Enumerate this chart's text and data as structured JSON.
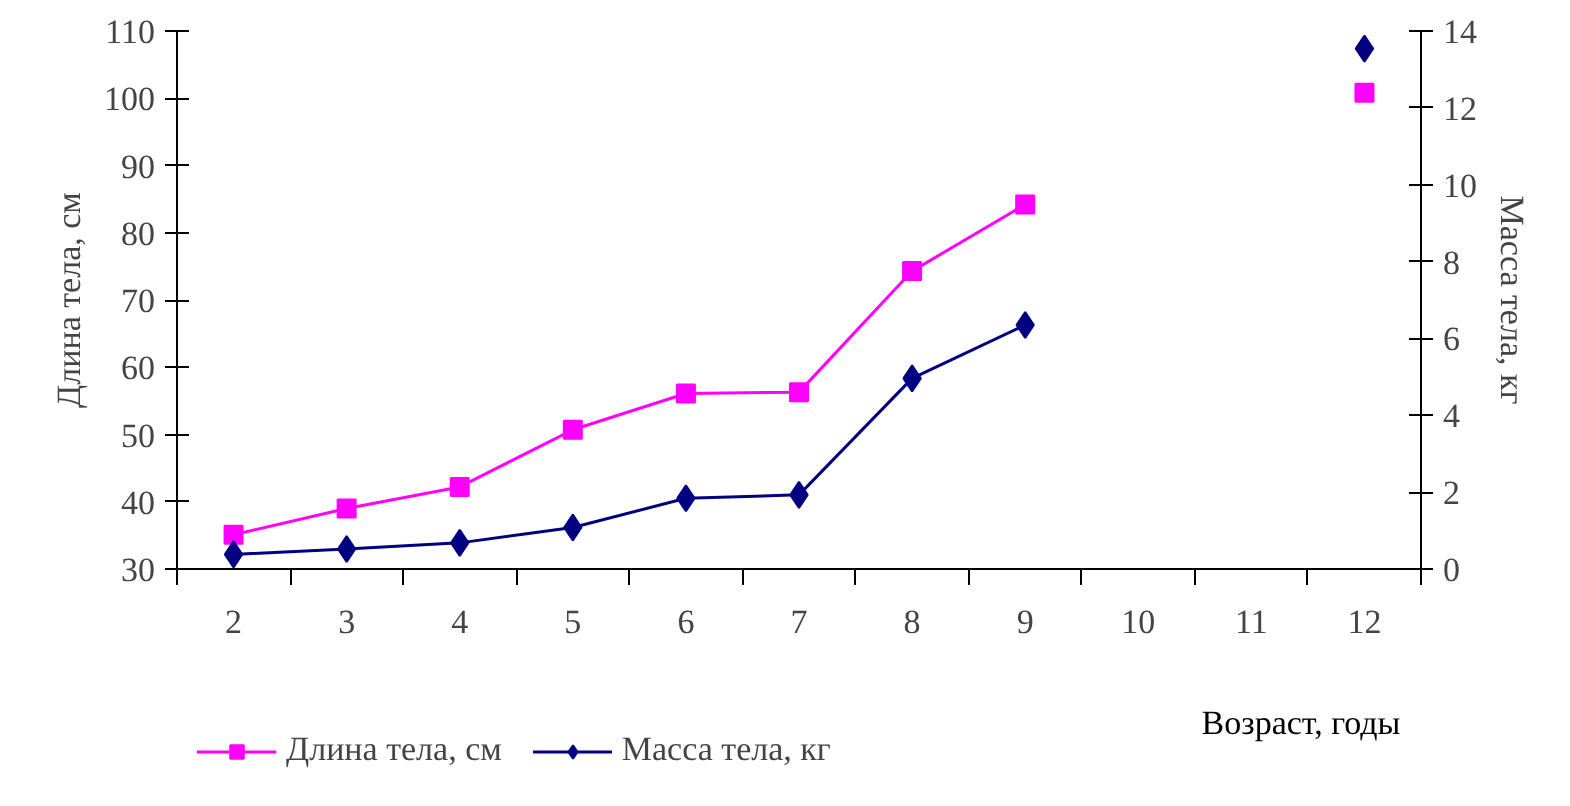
{
  "chart_data": {
    "type": "line",
    "xlabel": "Возраст, годы",
    "ylabel": "Длина тела, см",
    "y2label": "Масса тела, кг",
    "categories": [
      "2",
      "3",
      "4",
      "5",
      "6",
      "7",
      "8",
      "9",
      "10",
      "11",
      "12"
    ],
    "series": [
      {
        "name": "Длина тела, см",
        "color": "#ff00ff",
        "marker": "square",
        "values": [
          35.1,
          39.0,
          42.2,
          50.7,
          56.1,
          56.3,
          74.3,
          84.2,
          null,
          null,
          100.8
        ]
      },
      {
        "name": "Масса тела, кг",
        "color": "#000080",
        "marker": "diamond",
        "axis": "y2",
        "values": [
          0.38,
          0.52,
          0.68,
          1.08,
          1.84,
          1.93,
          4.96,
          6.35,
          null,
          null,
          13.54
        ]
      }
    ],
    "ylim": [
      30,
      110
    ],
    "yticks": [
      30,
      40,
      50,
      60,
      70,
      80,
      90,
      100,
      110
    ],
    "y2lim": [
      0,
      14
    ],
    "y2ticks": [
      0,
      2,
      4,
      6,
      8,
      10,
      12,
      14
    ],
    "grid": false,
    "legend": "bottom",
    "line_style": "solid"
  }
}
